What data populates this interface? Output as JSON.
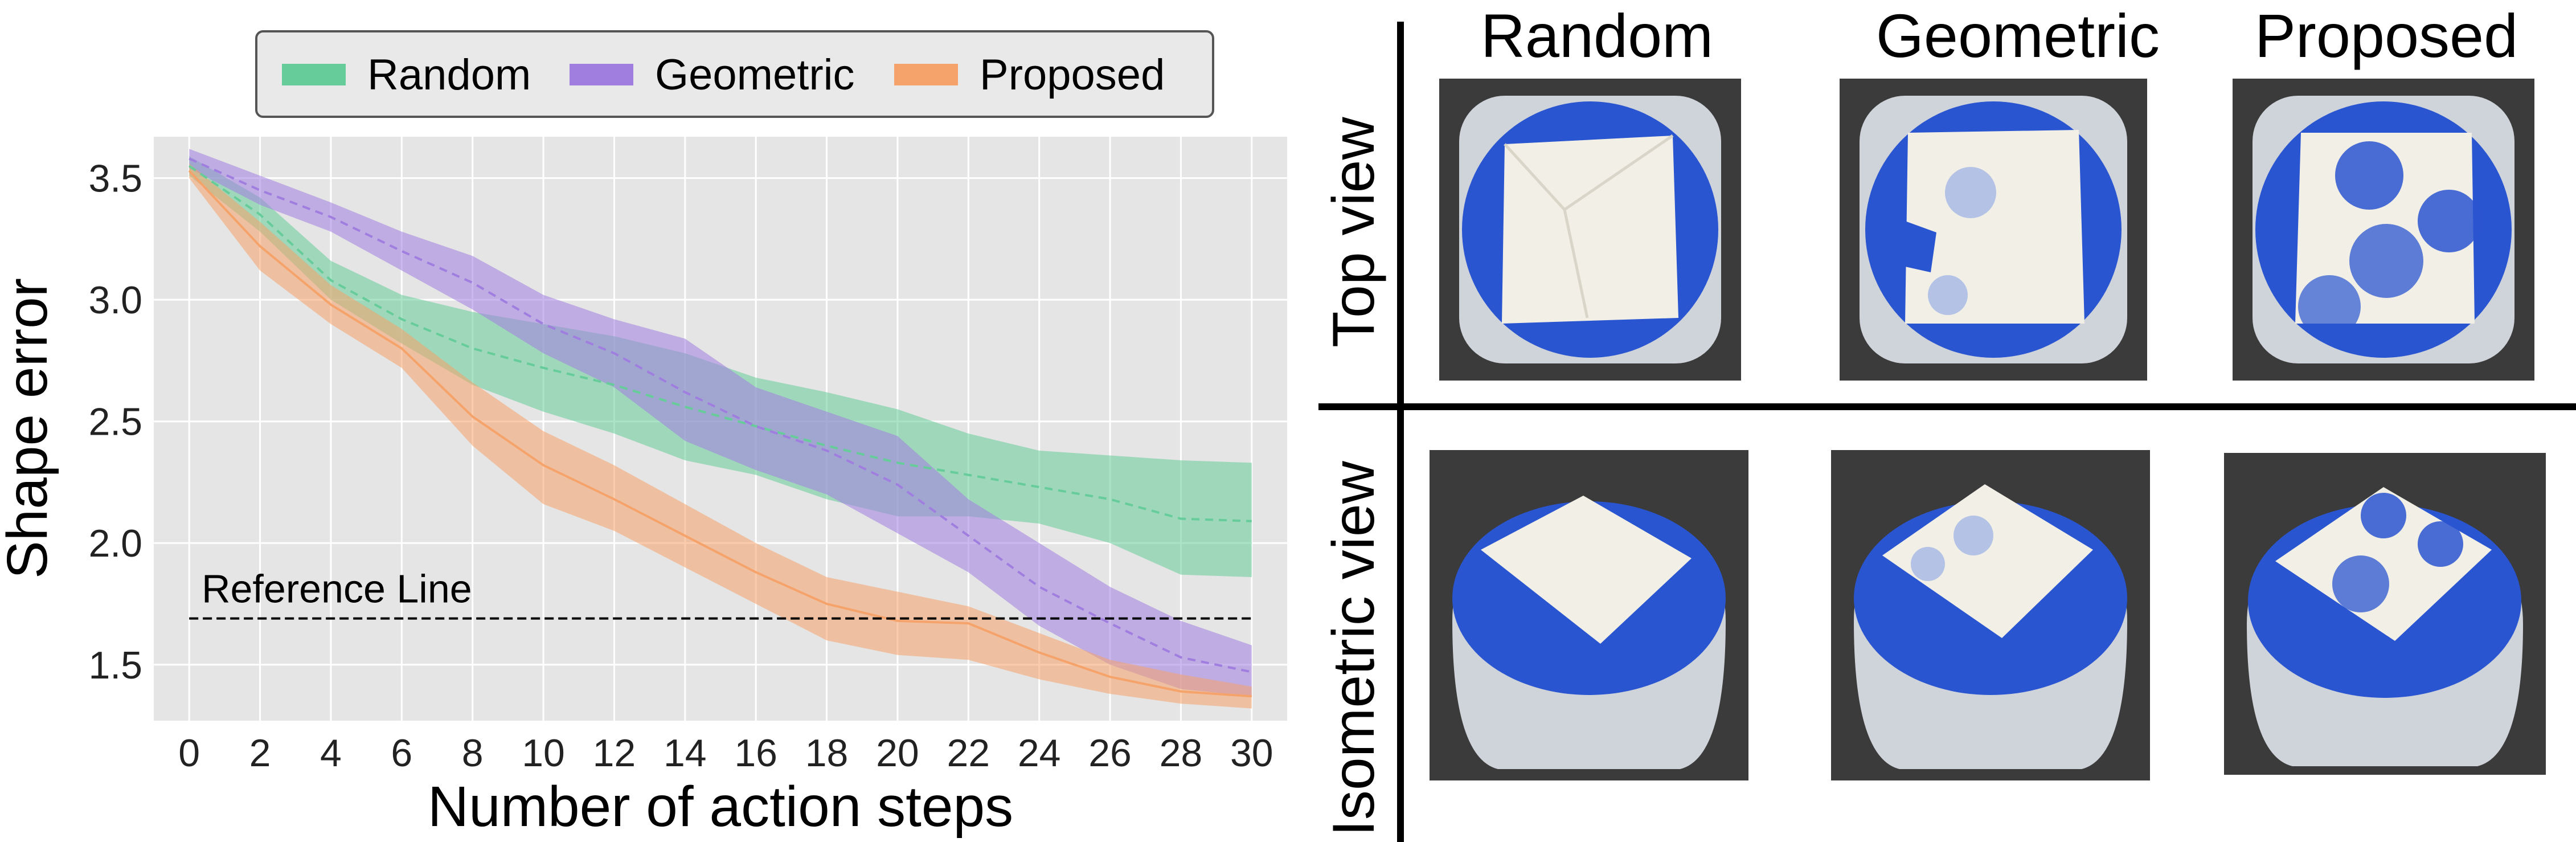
{
  "chart_data": {
    "type": "line",
    "xlabel": "Number of action steps",
    "ylabel": "Shape error",
    "xlim": [
      -1,
      31
    ],
    "ylim": [
      1.27,
      3.67
    ],
    "xticks": [
      0,
      2,
      4,
      6,
      8,
      10,
      12,
      14,
      16,
      18,
      20,
      22,
      24,
      26,
      28,
      30
    ],
    "yticks": [
      1.5,
      2.0,
      2.5,
      3.0,
      3.5
    ],
    "grid": true,
    "legend_placement": "top",
    "x": [
      0,
      2,
      4,
      6,
      8,
      10,
      12,
      14,
      16,
      18,
      20,
      22,
      24,
      26,
      28,
      30
    ],
    "series": [
      {
        "name": "Random",
        "color": "#66cc99",
        "line_style": "dashed",
        "values": [
          3.55,
          3.35,
          3.08,
          2.92,
          2.8,
          2.72,
          2.65,
          2.56,
          2.48,
          2.4,
          2.33,
          2.28,
          2.23,
          2.18,
          2.1,
          2.09
        ],
        "upper": [
          3.59,
          3.42,
          3.16,
          3.02,
          2.95,
          2.9,
          2.85,
          2.78,
          2.68,
          2.62,
          2.55,
          2.45,
          2.38,
          2.36,
          2.34,
          2.33
        ],
        "lower": [
          3.51,
          3.28,
          3.0,
          2.82,
          2.65,
          2.54,
          2.45,
          2.34,
          2.28,
          2.18,
          2.11,
          2.11,
          2.08,
          2.0,
          1.87,
          1.86
        ]
      },
      {
        "name": "Geometric",
        "color": "#a07ee0",
        "line_style": "dashed",
        "values": [
          3.58,
          3.45,
          3.34,
          3.2,
          3.07,
          2.9,
          2.78,
          2.62,
          2.48,
          2.38,
          2.24,
          2.03,
          1.82,
          1.67,
          1.53,
          1.47
        ],
        "upper": [
          3.62,
          3.51,
          3.4,
          3.28,
          3.18,
          3.02,
          2.92,
          2.84,
          2.64,
          2.54,
          2.44,
          2.18,
          2.0,
          1.82,
          1.68,
          1.58
        ],
        "lower": [
          3.54,
          3.39,
          3.28,
          3.12,
          2.96,
          2.78,
          2.64,
          2.42,
          2.3,
          2.2,
          2.04,
          1.88,
          1.66,
          1.5,
          1.4,
          1.37
        ]
      },
      {
        "name": "Proposed",
        "color": "#f5a36a",
        "line_style": "solid",
        "values": [
          3.53,
          3.22,
          2.98,
          2.8,
          2.52,
          2.32,
          2.18,
          2.03,
          1.88,
          1.75,
          1.68,
          1.67,
          1.55,
          1.45,
          1.39,
          1.37
        ],
        "upper": [
          3.56,
          3.32,
          3.06,
          2.88,
          2.66,
          2.46,
          2.32,
          2.16,
          2.0,
          1.86,
          1.8,
          1.74,
          1.63,
          1.52,
          1.46,
          1.41
        ],
        "lower": [
          3.5,
          3.12,
          2.9,
          2.72,
          2.4,
          2.16,
          2.05,
          1.9,
          1.75,
          1.6,
          1.54,
          1.52,
          1.44,
          1.38,
          1.34,
          1.32
        ]
      }
    ],
    "annotations": [
      {
        "text": "Reference Line",
        "y": 1.69,
        "line_style": "dashed"
      }
    ]
  },
  "photo_grid": {
    "columns": [
      "Random",
      "Geometric",
      "Proposed"
    ],
    "rows": [
      "Top view",
      "Isometric view"
    ],
    "colors": {
      "base": "#2a55d0",
      "clay": "#f2f0e6",
      "housing": "#cfd3da",
      "background": "#3b3b3b"
    }
  }
}
